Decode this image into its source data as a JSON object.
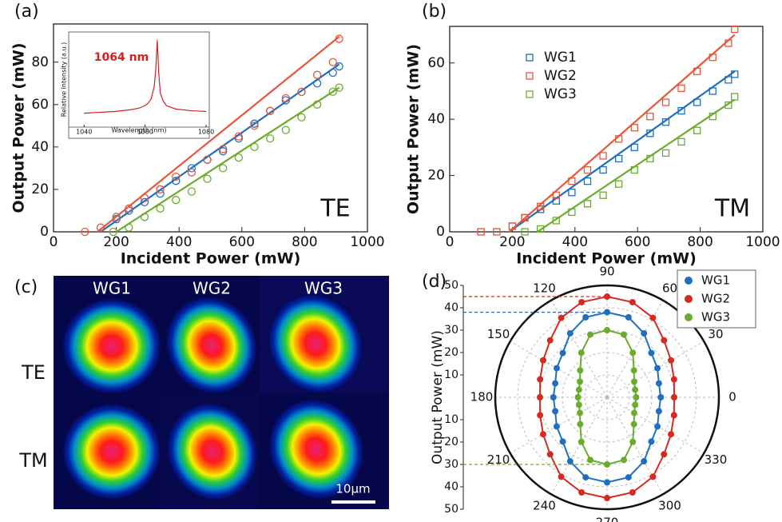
{
  "chart_data": [
    {
      "type": "scatter",
      "panel_label": "(a)",
      "xlabel": "Incident Power (mW)",
      "ylabel": "Output Power (mW)",
      "annotation": "TE",
      "xlim": [
        0,
        1000
      ],
      "ylim": [
        0,
        98
      ],
      "xticks": [
        0,
        200,
        400,
        600,
        800,
        1000
      ],
      "yticks": [
        0,
        20,
        40,
        60,
        80
      ],
      "marker": "circle",
      "series": [
        {
          "color": "#1f6fc0",
          "x": [
            200,
            240,
            290,
            340,
            390,
            440,
            490,
            540,
            590,
            640,
            690,
            740,
            790,
            840,
            890,
            910
          ],
          "values": [
            6,
            10,
            14,
            18,
            24,
            30,
            34,
            38,
            44,
            51,
            57,
            62,
            66,
            70,
            75,
            78
          ],
          "fit_x": [
            150,
            910
          ],
          "fit_y": [
            0,
            79
          ]
        },
        {
          "color": "#e8563a",
          "x": [
            100,
            150,
            200,
            240,
            290,
            340,
            390,
            440,
            490,
            540,
            590,
            640,
            690,
            740,
            790,
            840,
            890,
            910
          ],
          "values": [
            0,
            2,
            7,
            11,
            16,
            20,
            26,
            28,
            34,
            39,
            45,
            50,
            57,
            63,
            66,
            74,
            80,
            91
          ],
          "fit_x": [
            140,
            910
          ],
          "fit_y": [
            0,
            92
          ]
        },
        {
          "color": "#6aac2c",
          "x": [
            190,
            240,
            290,
            340,
            390,
            440,
            490,
            540,
            590,
            640,
            690,
            740,
            790,
            840,
            890,
            910
          ],
          "values": [
            0,
            2,
            7,
            11,
            15,
            19,
            25,
            30,
            35,
            40,
            44,
            48,
            54,
            60,
            66,
            68
          ],
          "fit_x": [
            200,
            910
          ],
          "fit_y": [
            0,
            68
          ]
        }
      ]
    },
    {
      "type": "line",
      "xlabel": "Wavelength (nm)",
      "ylabel": "Relative Intensity (a.u.)",
      "annotation": "1064 nm",
      "xlim": [
        1036,
        1080
      ],
      "ylim": [
        0,
        1
      ],
      "xticks": [
        1040,
        1060,
        1080
      ],
      "color": "#d42020",
      "x": [
        1040,
        1045,
        1050,
        1055,
        1058,
        1060,
        1061,
        1062,
        1063,
        1063.5,
        1064,
        1064.5,
        1065,
        1066,
        1067,
        1070,
        1075,
        1080
      ],
      "values": [
        0.08,
        0.09,
        0.1,
        0.12,
        0.14,
        0.17,
        0.2,
        0.25,
        0.4,
        0.6,
        0.95,
        0.55,
        0.32,
        0.22,
        0.17,
        0.13,
        0.11,
        0.1
      ]
    },
    {
      "type": "scatter",
      "panel_label": "(b)",
      "xlabel": "Incident Power (mW)",
      "ylabel": "Output Power (mW)",
      "annotation": "TM",
      "xlim": [
        0,
        1000
      ],
      "ylim": [
        0,
        73
      ],
      "xticks": [
        0,
        200,
        400,
        600,
        800,
        1000
      ],
      "yticks": [
        0,
        20,
        40,
        60
      ],
      "marker": "square",
      "series": [
        {
          "name": "WG1",
          "color": "#1f6fc0",
          "x": [
            200,
            240,
            290,
            340,
            390,
            440,
            490,
            540,
            590,
            640,
            690,
            740,
            790,
            840,
            890,
            910
          ],
          "values": [
            2,
            5,
            8,
            11,
            14,
            18,
            22,
            26,
            30,
            35,
            39,
            43,
            46,
            50,
            54,
            56
          ],
          "fit_x": [
            190,
            910
          ],
          "fit_y": [
            0,
            57
          ]
        },
        {
          "name": "WG2",
          "color": "#e8563a",
          "x": [
            100,
            150,
            200,
            240,
            290,
            340,
            390,
            440,
            490,
            540,
            590,
            640,
            690,
            740,
            790,
            840,
            890,
            910
          ],
          "values": [
            0,
            0,
            2,
            5,
            9,
            13,
            18,
            22,
            27,
            33,
            37,
            41,
            46,
            51,
            57,
            62,
            67,
            72
          ],
          "fit_x": [
            190,
            910
          ],
          "fit_y": [
            0,
            70
          ]
        },
        {
          "name": "WG3",
          "color": "#6aac2c",
          "x": [
            240,
            290,
            340,
            390,
            440,
            490,
            540,
            590,
            640,
            690,
            740,
            790,
            840,
            890,
            910
          ],
          "values": [
            0,
            1,
            4,
            7,
            10,
            13,
            17,
            22,
            26,
            28,
            32,
            36,
            41,
            45,
            48
          ],
          "fit_x": [
            280,
            910
          ],
          "fit_y": [
            0,
            47
          ]
        }
      ]
    },
    {
      "type": "polar",
      "panel_label": "(d)",
      "ylabel": "Output Power (mW)",
      "rlim": [
        0,
        50
      ],
      "rticks": [
        10,
        20,
        30,
        40,
        50
      ],
      "angle_ticks": [
        0,
        30,
        60,
        90,
        120,
        150,
        180,
        210,
        240,
        270,
        300,
        330
      ],
      "theta": [
        0,
        15,
        30,
        45,
        60,
        75,
        90,
        105,
        120,
        135,
        150,
        165,
        180,
        195,
        210,
        225,
        240,
        255,
        270,
        285,
        300,
        315,
        330,
        345
      ],
      "series": [
        {
          "name": "WG1",
          "color": "#1f6fc0",
          "values": [
            24,
            24,
            26,
            28,
            33,
            37,
            38,
            37,
            33,
            28,
            26,
            24,
            24,
            24,
            26,
            28,
            33,
            37,
            38,
            37,
            33,
            28,
            26,
            24
          ]
        },
        {
          "name": "WG2",
          "color": "#d42a20",
          "values": [
            30,
            31,
            33,
            36,
            41,
            44,
            45,
            44,
            41,
            36,
            33,
            31,
            30,
            31,
            33,
            36,
            41,
            44,
            45,
            44,
            41,
            36,
            33,
            31
          ]
        },
        {
          "name": "WG3",
          "color": "#6aac2c",
          "values": [
            13,
            13,
            14,
            17,
            23,
            29,
            30,
            29,
            23,
            17,
            14,
            13,
            13,
            13,
            14,
            17,
            23,
            29,
            30,
            29,
            23,
            17,
            14,
            13
          ]
        }
      ]
    }
  ],
  "image_panel": {
    "panel_label": "(c)",
    "columns": [
      "WG1",
      "WG2",
      "WG3"
    ],
    "rows": [
      "TE",
      "TM"
    ],
    "scale_label": "10μm"
  }
}
